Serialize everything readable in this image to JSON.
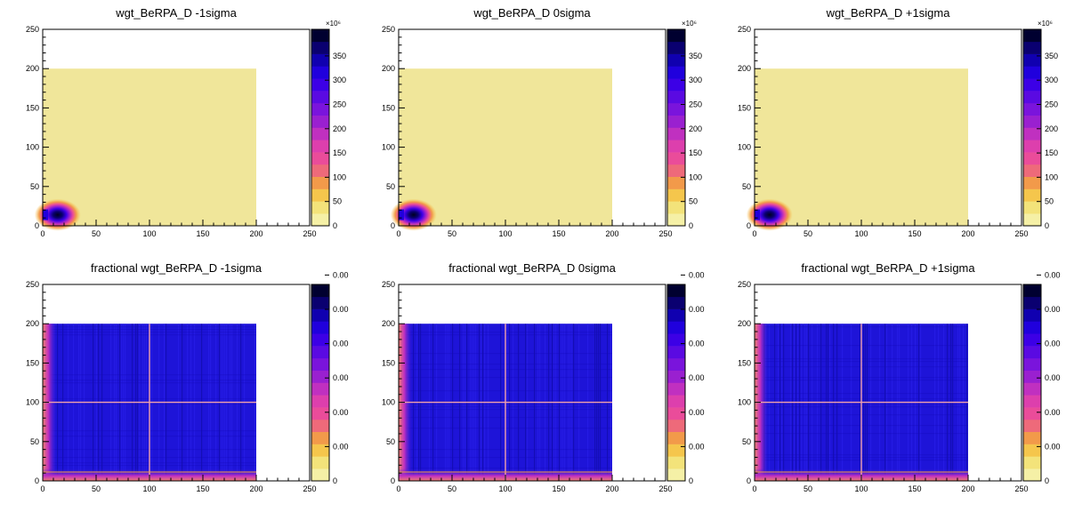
{
  "chart_data": [
    {
      "type": "heatmap",
      "title": "wgt_BeRPA_D -1sigma",
      "variant": "weight",
      "xlim": [
        0,
        250
      ],
      "ylim": [
        0,
        250
      ],
      "xticks": [
        "0",
        "50",
        "100",
        "150",
        "200",
        "250"
      ],
      "yticks": [
        "0",
        "50",
        "100",
        "150",
        "200",
        "250"
      ],
      "z_exponent_label": "×10⁶",
      "z_ticks": [
        "0",
        "50",
        "100",
        "150",
        "200",
        "250",
        "300",
        "350"
      ],
      "filled_region": {
        "x": [
          0,
          200
        ],
        "y": [
          0,
          200
        ]
      },
      "hotspot": {
        "x": 14,
        "y": 14
      }
    },
    {
      "type": "heatmap",
      "title": "wgt_BeRPA_D 0sigma",
      "variant": "weight",
      "xlim": [
        0,
        250
      ],
      "ylim": [
        0,
        250
      ],
      "xticks": [
        "0",
        "50",
        "100",
        "150",
        "200",
        "250"
      ],
      "yticks": [
        "0",
        "50",
        "100",
        "150",
        "200",
        "250"
      ],
      "z_exponent_label": "×10⁶",
      "z_ticks": [
        "0",
        "50",
        "100",
        "150",
        "200",
        "250",
        "300",
        "350"
      ],
      "filled_region": {
        "x": [
          0,
          200
        ],
        "y": [
          0,
          200
        ]
      },
      "hotspot": {
        "x": 14,
        "y": 14
      }
    },
    {
      "type": "heatmap",
      "title": "wgt_BeRPA_D +1sigma",
      "variant": "weight",
      "xlim": [
        0,
        250
      ],
      "ylim": [
        0,
        250
      ],
      "xticks": [
        "0",
        "50",
        "100",
        "150",
        "200",
        "250"
      ],
      "yticks": [
        "0",
        "50",
        "100",
        "150",
        "200",
        "250"
      ],
      "z_exponent_label": "×10⁶",
      "z_ticks": [
        "0",
        "50",
        "100",
        "150",
        "200",
        "250",
        "300",
        "350"
      ],
      "filled_region": {
        "x": [
          0,
          200
        ],
        "y": [
          0,
          200
        ]
      },
      "hotspot": {
        "x": 14,
        "y": 14
      }
    },
    {
      "type": "heatmap",
      "title": "fractional wgt_BeRPA_D -1sigma",
      "variant": "fractional",
      "xlim": [
        0,
        250
      ],
      "ylim": [
        0,
        250
      ],
      "xticks": [
        "0",
        "50",
        "100",
        "150",
        "200",
        "250"
      ],
      "yticks": [
        "0",
        "50",
        "100",
        "150",
        "200",
        "250"
      ],
      "z_ticks": [
        "0",
        "0.00",
        "0.00",
        "0.00",
        "0.00",
        "0.00",
        "0.00"
      ],
      "filled_region": {
        "x": [
          0,
          200
        ],
        "y": [
          0,
          200
        ]
      },
      "ridge_lines": {
        "x": 100,
        "y": 100
      }
    },
    {
      "type": "heatmap",
      "title": "fractional wgt_BeRPA_D 0sigma",
      "variant": "fractional",
      "xlim": [
        0,
        250
      ],
      "ylim": [
        0,
        250
      ],
      "xticks": [
        "0",
        "50",
        "100",
        "150",
        "200",
        "250"
      ],
      "yticks": [
        "0",
        "50",
        "100",
        "150",
        "200",
        "250"
      ],
      "z_ticks": [
        "0",
        "0.00",
        "0.00",
        "0.00",
        "0.00",
        "0.00",
        "0.00"
      ],
      "filled_region": {
        "x": [
          0,
          200
        ],
        "y": [
          0,
          200
        ]
      },
      "ridge_lines": {
        "x": 100,
        "y": 100
      }
    },
    {
      "type": "heatmap",
      "title": "fractional wgt_BeRPA_D +1sigma",
      "variant": "fractional",
      "xlim": [
        0,
        250
      ],
      "ylim": [
        0,
        250
      ],
      "xticks": [
        "0",
        "50",
        "100",
        "150",
        "200",
        "250"
      ],
      "yticks": [
        "0",
        "50",
        "100",
        "150",
        "200",
        "250"
      ],
      "z_ticks": [
        "0",
        "0.00",
        "0.00",
        "0.00",
        "0.00",
        "0.00",
        "0.00"
      ],
      "filled_region": {
        "x": [
          0,
          200
        ],
        "y": [
          0,
          200
        ]
      },
      "ridge_lines": {
        "x": 100,
        "y": 100
      }
    }
  ],
  "palette": [
    "#f5f0a6",
    "#f3e37a",
    "#f5c64c",
    "#f29a4a",
    "#ee6a7a",
    "#ea4c9a",
    "#dd3fad",
    "#c030c0",
    "#9a20d0",
    "#7a14dc",
    "#5a0ae2",
    "#3c00e6",
    "#2000dd",
    "#1000b0",
    "#0a0070",
    "#000030"
  ],
  "colors": {
    "fill": "#f0e69a",
    "field": "#1e14d8",
    "field_dark": "#0c0a9a",
    "ridge": "#f0a0a8",
    "axis": "#000000"
  }
}
